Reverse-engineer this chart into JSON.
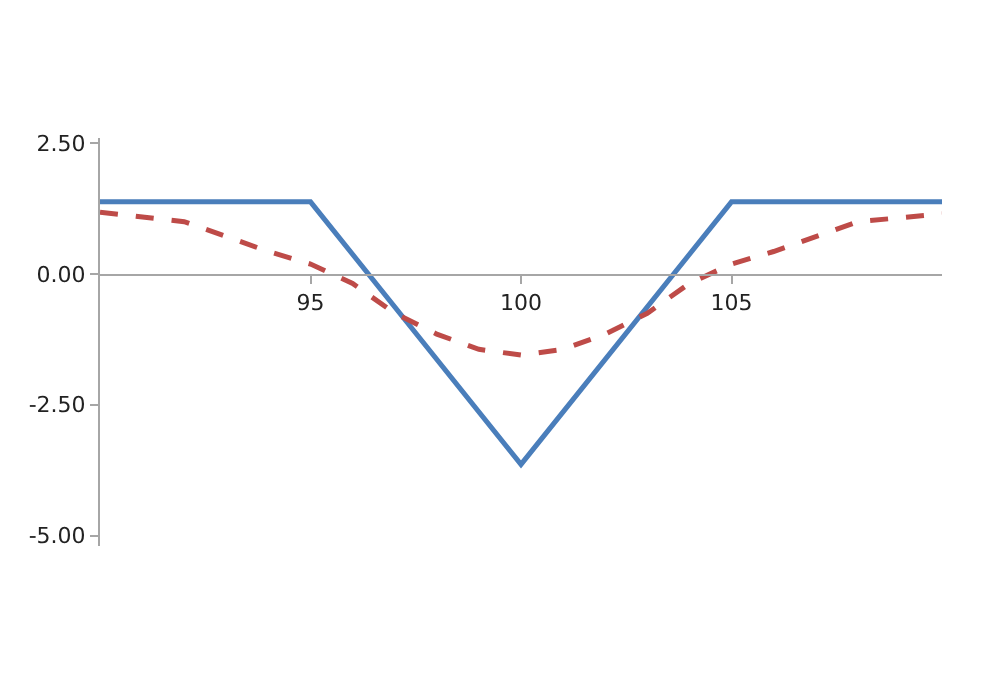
{
  "chart_data": {
    "type": "line",
    "x": [
      90,
      95,
      100,
      105,
      110
    ],
    "series": [
      {
        "color": "#4a7ebb",
        "line_style": "solid",
        "values": [
          1.38,
          1.38,
          -3.64,
          1.38,
          1.38
        ]
      },
      {
        "color": "#be4b48",
        "line_style": "dashed",
        "x": [
          90,
          92,
          94,
          95,
          96,
          97,
          98,
          99,
          100,
          101,
          102,
          103,
          104,
          105,
          106,
          108,
          110
        ],
        "values": [
          1.18,
          1.0,
          0.43,
          0.19,
          -0.18,
          -0.75,
          -1.15,
          -1.44,
          -1.55,
          -1.44,
          -1.15,
          -0.75,
          -0.18,
          0.19,
          0.43,
          1.0,
          1.15
        ]
      }
    ],
    "xlim": [
      90,
      110
    ],
    "xticks": [
      95,
      100,
      105
    ],
    "ylim": [
      -5.2,
      2.6
    ],
    "yticks": [
      {
        "value": 2.5,
        "label": "2.50"
      },
      {
        "value": 0,
        "label": "0.00"
      },
      {
        "value": -2.5,
        "label": "-2.50"
      },
      {
        "value": -5,
        "label": "-5.00"
      }
    ],
    "grid": false,
    "marker": "none"
  }
}
